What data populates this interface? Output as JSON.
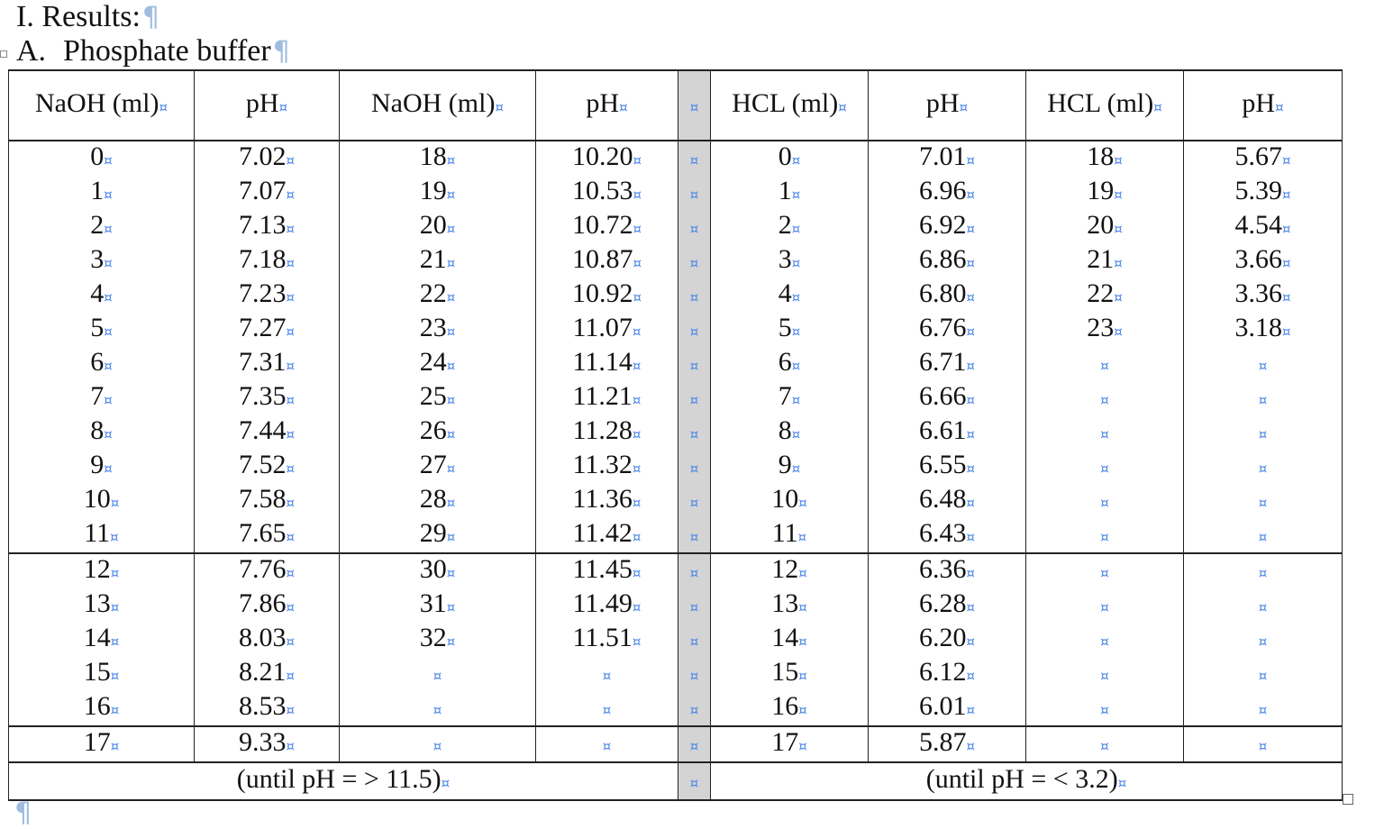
{
  "document": {
    "heading1": "I. Results:",
    "heading2_label": "A.",
    "heading2_title": "Phosphate buffer",
    "paragraph_mark": "¶",
    "cell_mark": "¤"
  },
  "table": {
    "headers": [
      "NaOH (ml)",
      "pH",
      "NaOH (ml)",
      "pH",
      "",
      "HCL (ml)",
      "pH",
      "HCL (ml)",
      "pH"
    ],
    "rows": [
      [
        "0",
        "7.02",
        "18",
        "10.20",
        "",
        "0",
        "7.01",
        "18",
        "5.67"
      ],
      [
        "1",
        "7.07",
        "19",
        "10.53",
        "",
        "1",
        "6.96",
        "19",
        "5.39"
      ],
      [
        "2",
        "7.13",
        "20",
        "10.72",
        "",
        "2",
        "6.92",
        "20",
        "4.54"
      ],
      [
        "3",
        "7.18",
        "21",
        "10.87",
        "",
        "3",
        "6.86",
        "21",
        "3.66"
      ],
      [
        "4",
        "7.23",
        "22",
        "10.92",
        "",
        "4",
        "6.80",
        "22",
        "3.36"
      ],
      [
        "5",
        "7.27",
        "23",
        "11.07",
        "",
        "5",
        "6.76",
        "23",
        "3.18"
      ],
      [
        "6",
        "7.31",
        "24",
        "11.14",
        "",
        "6",
        "6.71",
        "",
        ""
      ],
      [
        "7",
        "7.35",
        "25",
        "11.21",
        "",
        "7",
        "6.66",
        "",
        ""
      ],
      [
        "8",
        "7.44",
        "26",
        "11.28",
        "",
        "8",
        "6.61",
        "",
        ""
      ],
      [
        "9",
        "7.52",
        "27",
        "11.32",
        "",
        "9",
        "6.55",
        "",
        ""
      ],
      [
        "10",
        "7.58",
        "28",
        "11.36",
        "",
        "10",
        "6.48",
        "",
        ""
      ],
      [
        "11",
        "7.65",
        "29",
        "11.42",
        "",
        "11",
        "6.43",
        "",
        ""
      ],
      [
        "12",
        "7.76",
        "30",
        "11.45",
        "",
        "12",
        "6.36",
        "",
        ""
      ],
      [
        "13",
        "7.86",
        "31",
        "11.49",
        "",
        "13",
        "6.28",
        "",
        ""
      ],
      [
        "14",
        "8.03",
        "32",
        "11.51",
        "",
        "14",
        "6.20",
        "",
        ""
      ],
      [
        "15",
        "8.21",
        "",
        "",
        "",
        "15",
        "6.12",
        "",
        ""
      ],
      [
        "16",
        "8.53",
        "",
        "",
        "",
        "16",
        "6.01",
        "",
        ""
      ],
      [
        "17",
        "9.33",
        "",
        "",
        "",
        "17",
        "5.87",
        "",
        ""
      ]
    ],
    "footer_left": "(until pH = > 11.5)",
    "footer_right": "(until pH = < 3.2)"
  },
  "colors": {
    "formatting_mark": "#4a86e8",
    "separator_column": "#d4d4d4"
  }
}
